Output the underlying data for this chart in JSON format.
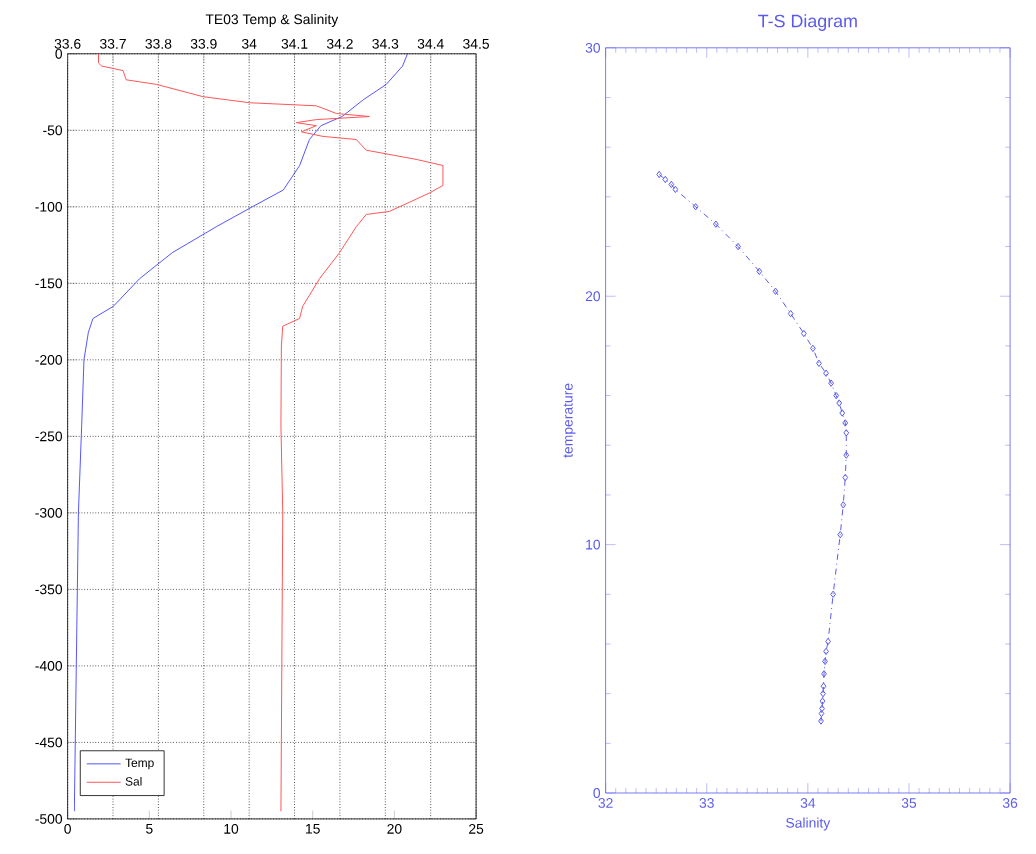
{
  "chart_data": [
    {
      "type": "line",
      "title": "TE03 Temp & Salinity",
      "xlim": [
        0,
        25
      ],
      "xticks": [
        0,
        5,
        10,
        15,
        20,
        25
      ],
      "x2lim": [
        33.6,
        34.5
      ],
      "x2ticks": [
        33.6,
        33.7,
        33.8,
        33.9,
        34,
        34.1,
        34.2,
        34.3,
        34.4,
        34.5
      ],
      "ylim": [
        -500,
        0
      ],
      "yticks": [
        -500,
        -450,
        -400,
        -350,
        -300,
        -250,
        -200,
        -150,
        -100,
        -50,
        0
      ],
      "grid": true,
      "legend": "bottom left",
      "series": [
        {
          "name": "Temp",
          "color": "#5555ff",
          "x": [
            20.8,
            20.5,
            19.5,
            18.1,
            16.8,
            15.5,
            14.8,
            14.2,
            13.2,
            11.3,
            9.1,
            6.4,
            4.4,
            2.8,
            1.55,
            1.27,
            1.0,
            0.86,
            0.66,
            0.53,
            0.41
          ],
          "values": [
            0,
            -8,
            -20,
            -30,
            -41,
            -47,
            -56,
            -73,
            -89,
            -100,
            -113,
            -130,
            -147,
            -165,
            -173,
            -182,
            -200,
            -243,
            -300,
            -400,
            -495
          ]
        },
        {
          "name": "Sal",
          "axis": "x2",
          "color": "#ff5555",
          "x": [
            33.668,
            33.668,
            33.675,
            33.722,
            33.729,
            33.796,
            33.898,
            34.001,
            34.148,
            34.192,
            34.265,
            34.148,
            34.104,
            34.148,
            34.115,
            34.163,
            34.236,
            34.258,
            34.368,
            34.427,
            34.427,
            34.397,
            34.368,
            34.309,
            34.258,
            34.236,
            34.199,
            34.155,
            34.118,
            34.111,
            34.074,
            34.071,
            34.07,
            34.074,
            34.07
          ],
          "values": [
            0,
            -6,
            -8,
            -11,
            -17,
            -20,
            -28,
            -32,
            -34,
            -39,
            -41,
            -43,
            -45,
            -47,
            -51,
            -54,
            -56,
            -63,
            -69,
            -73,
            -86,
            -91,
            -95,
            -103,
            -105,
            -113,
            -130,
            -147,
            -165,
            -173,
            -178,
            -191,
            -243,
            -300,
            -495
          ]
        }
      ]
    },
    {
      "type": "line",
      "title": "T-S Diagram",
      "xlabel": "Salinity",
      "ylabel": "temperature",
      "xlim": [
        32,
        36
      ],
      "xticks": [
        32,
        33,
        34,
        35,
        36
      ],
      "ylim": [
        0,
        30
      ],
      "yticks": [
        0,
        10,
        20,
        30
      ],
      "marker": "diamond",
      "line_style": "dashed",
      "series": [
        {
          "color": "#5a5aee",
          "x": [
            32.53,
            32.59,
            32.65,
            32.69,
            32.89,
            33.09,
            33.31,
            33.52,
            33.68,
            33.83,
            33.96,
            34.05,
            34.11,
            34.18,
            34.23,
            34.28,
            34.31,
            34.34,
            34.37,
            34.38,
            34.38,
            34.37,
            34.35,
            34.32,
            34.25,
            34.2,
            34.18,
            34.17,
            34.16,
            34.155,
            34.15,
            34.145,
            34.14,
            34.135,
            34.13
          ],
          "values": [
            24.9,
            24.7,
            24.5,
            24.3,
            23.6,
            22.9,
            22.0,
            21.0,
            20.2,
            19.3,
            18.5,
            17.9,
            17.3,
            16.9,
            16.5,
            16.0,
            15.7,
            15.3,
            14.9,
            14.5,
            13.6,
            12.7,
            11.6,
            10.4,
            8.0,
            6.1,
            5.7,
            5.3,
            4.8,
            4.3,
            4.0,
            3.7,
            3.4,
            3.2,
            2.9
          ]
        }
      ]
    }
  ]
}
